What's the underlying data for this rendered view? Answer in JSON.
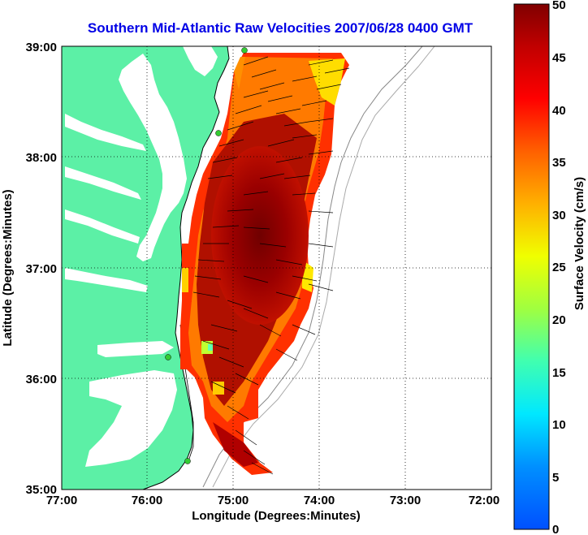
{
  "title": "Southern Mid-Atlantic Raw Velocities 2007/06/28 0400 GMT",
  "x_axis": {
    "label": "Longitude (Degrees:Minutes)",
    "ticks": [
      "77:00",
      "76:00",
      "75:00",
      "74:00",
      "73:00",
      "72:00"
    ]
  },
  "y_axis": {
    "label": "Latitude (Degrees:Minutes)",
    "ticks": [
      "39:00",
      "38:00",
      "37:00",
      "36:00",
      "35:00"
    ]
  },
  "colorbar": {
    "label": "Surface Velocity (cm/s)",
    "ticks": [
      "50",
      "45",
      "40",
      "35",
      "30",
      "25",
      "20",
      "15",
      "10",
      "5",
      "0"
    ],
    "range": [
      0,
      50
    ]
  },
  "colors": {
    "land": "#5cf0a6",
    "water": "#ffffff",
    "title": "#0000e6",
    "station": "#33cc33"
  },
  "map_extent": {
    "lon": [
      -77,
      -72
    ],
    "lat": [
      35,
      39
    ]
  },
  "grid": "dotted"
}
